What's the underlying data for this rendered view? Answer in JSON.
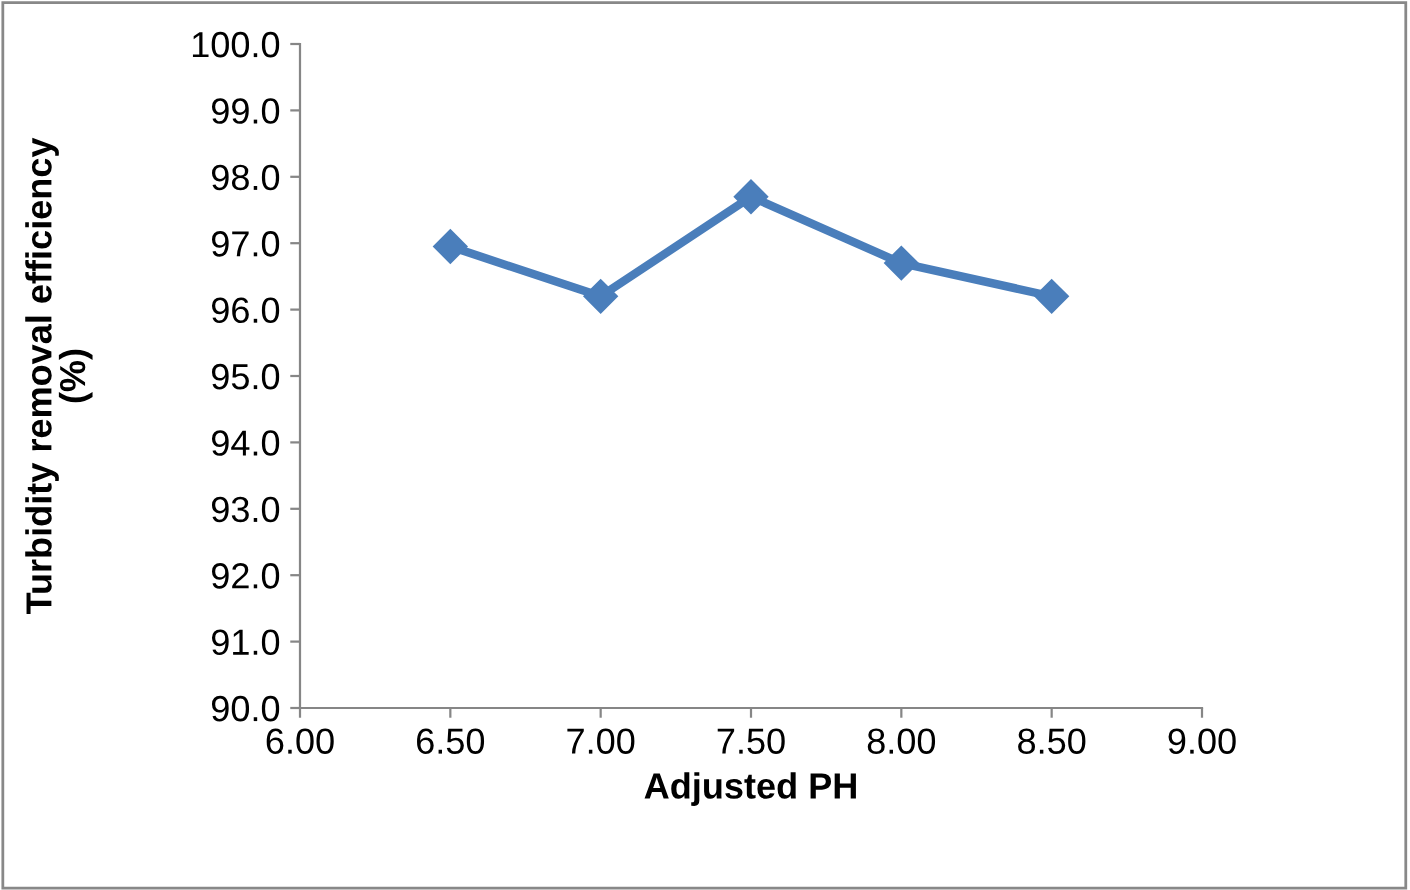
{
  "chart_data": {
    "type": "line",
    "xlabel": "Adjusted PH",
    "ylabel": "Turbidity removal efficiency\n(%)",
    "x": [
      6.5,
      7.0,
      7.5,
      8.0,
      8.5
    ],
    "series": [
      {
        "color": "#4a7ebb",
        "values": [
          96.95,
          96.2,
          97.7,
          96.7,
          96.2
        ]
      }
    ],
    "xlim": [
      6.0,
      9.0
    ],
    "xticks": [
      {
        "value": 6.0,
        "label": "6.00"
      },
      {
        "value": 6.5,
        "label": "6.50"
      },
      {
        "value": 7.0,
        "label": "7.00"
      },
      {
        "value": 7.5,
        "label": "7.50"
      },
      {
        "value": 8.0,
        "label": "8.00"
      },
      {
        "value": 8.5,
        "label": "8.50"
      },
      {
        "value": 9.0,
        "label": "9.00"
      }
    ],
    "ylim": [
      90,
      100
    ],
    "yticks": [
      {
        "value": 90,
        "label": "90.0"
      },
      {
        "value": 91,
        "label": "91.0"
      },
      {
        "value": 92,
        "label": "92.0"
      },
      {
        "value": 93,
        "label": "93.0"
      },
      {
        "value": 94,
        "label": "94.0"
      },
      {
        "value": 95,
        "label": "95.0"
      },
      {
        "value": 96,
        "label": "96.0"
      },
      {
        "value": 97,
        "label": "97.0"
      },
      {
        "value": 98,
        "label": "98.0"
      },
      {
        "value": 99,
        "label": "99.0"
      },
      {
        "value": 100,
        "label": "100.0"
      }
    ],
    "grid": false,
    "marker": "diamond",
    "line_style": "solid"
  }
}
